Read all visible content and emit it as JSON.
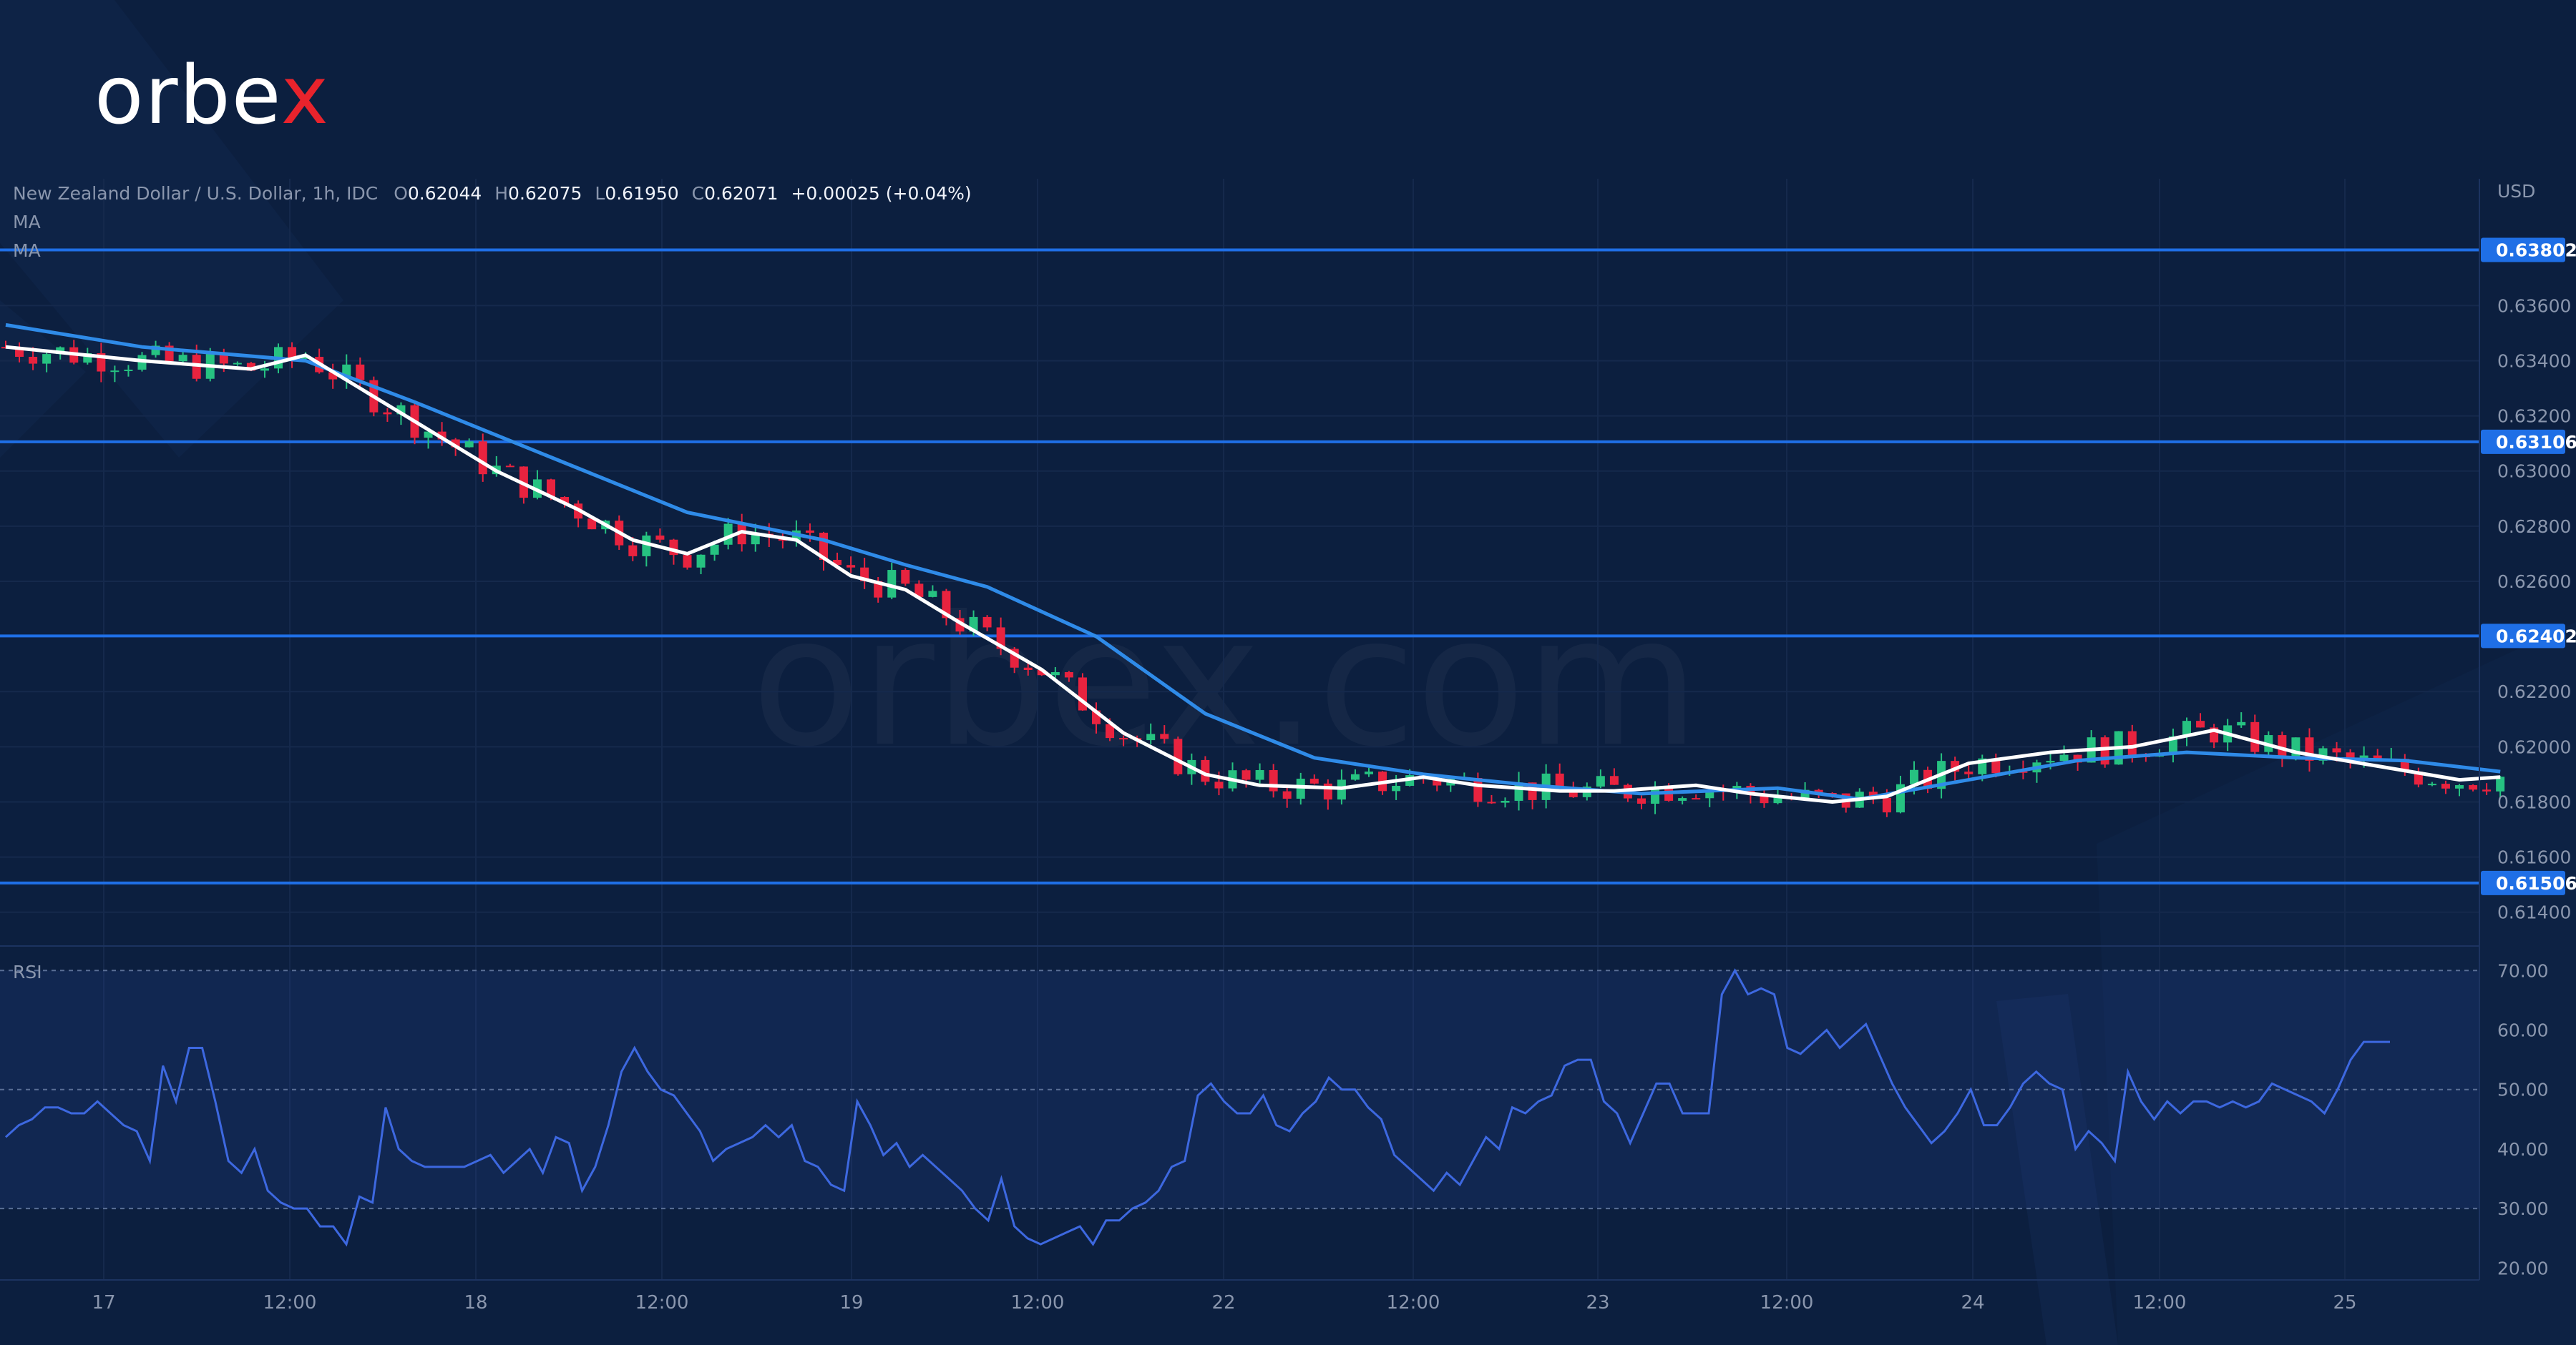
{
  "brand": {
    "logo_main": "orbe",
    "logo_accent": "x",
    "watermark": "orbex.com"
  },
  "legend": {
    "symbol": "New Zealand Dollar / U.S. Dollar, 1h, IDC",
    "o_label": "O",
    "o": "0.62044",
    "h_label": "H",
    "h": "0.62075",
    "l_label": "L",
    "l": "0.61950",
    "c_label": "C",
    "c": "0.62071",
    "change": "+0.00025 (+0.04%)",
    "ma1": "MA",
    "ma2": "MA"
  },
  "rsi_label": "RSI",
  "currency": "USD",
  "colors": {
    "background": "#0c1f3f",
    "bull": "#26c281",
    "bear": "#e8233f",
    "ma_fast": "#ffffff",
    "ma_slow": "#2f8be8",
    "rsi": "#3d68e0",
    "level_line": "#1f6fe6",
    "grid": "#15294c"
  },
  "chart_data": [
    {
      "type": "candlestick",
      "title": "New Zealand Dollar / U.S. Dollar, 1h, IDC",
      "x_tick_labels": [
        "17",
        "12:00",
        "18",
        "12:00",
        "19",
        "12:00",
        "22",
        "12:00",
        "23",
        "12:00",
        "24",
        "12:00",
        "25"
      ],
      "y_tick_labels": [
        "0.63600",
        "0.63400",
        "0.63200",
        "0.63000",
        "0.62800",
        "0.62600",
        "0.62200",
        "0.62000",
        "0.61800",
        "0.61600",
        "0.61400"
      ],
      "ylim": [
        0.6128,
        0.6406
      ],
      "horizontal_levels": [
        {
          "label": "0.63802",
          "value": 0.63802
        },
        {
          "label": "0.63106",
          "value": 0.63106
        },
        {
          "label": "0.62402",
          "value": 0.62402
        },
        {
          "label": "0.61506",
          "value": 0.61506
        }
      ],
      "moving_average_fast": [
        [
          0,
          0.6345
        ],
        [
          10,
          0.634
        ],
        [
          18,
          0.6337
        ],
        [
          22,
          0.6342
        ],
        [
          30,
          0.6318
        ],
        [
          36,
          0.63
        ],
        [
          42,
          0.6286
        ],
        [
          46,
          0.6275
        ],
        [
          50,
          0.627
        ],
        [
          54,
          0.6278
        ],
        [
          58,
          0.6275
        ],
        [
          62,
          0.6262
        ],
        [
          66,
          0.6257
        ],
        [
          70,
          0.6245
        ],
        [
          76,
          0.6228
        ],
        [
          82,
          0.6205
        ],
        [
          88,
          0.619
        ],
        [
          92,
          0.6186
        ],
        [
          98,
          0.6185
        ],
        [
          104,
          0.6189
        ],
        [
          108,
          0.6186
        ],
        [
          114,
          0.6184
        ],
        [
          118,
          0.6184
        ],
        [
          124,
          0.6186
        ],
        [
          128,
          0.6183
        ],
        [
          134,
          0.618
        ],
        [
          138,
          0.6182
        ],
        [
          144,
          0.6194
        ],
        [
          150,
          0.6198
        ],
        [
          156,
          0.62
        ],
        [
          162,
          0.6206
        ],
        [
          168,
          0.6198
        ],
        [
          174,
          0.6193
        ],
        [
          180,
          0.6188
        ],
        [
          183,
          0.6189
        ]
      ],
      "moving_average_slow": [
        [
          0,
          0.6353
        ],
        [
          10,
          0.6345
        ],
        [
          22,
          0.634
        ],
        [
          30,
          0.6325
        ],
        [
          40,
          0.6305
        ],
        [
          50,
          0.6285
        ],
        [
          60,
          0.6275
        ],
        [
          66,
          0.6266
        ],
        [
          72,
          0.6258
        ],
        [
          80,
          0.624
        ],
        [
          88,
          0.6212
        ],
        [
          96,
          0.6196
        ],
        [
          104,
          0.619
        ],
        [
          112,
          0.6186
        ],
        [
          120,
          0.6183
        ],
        [
          130,
          0.6185
        ],
        [
          136,
          0.6181
        ],
        [
          144,
          0.6188
        ],
        [
          152,
          0.6195
        ],
        [
          160,
          0.6198
        ],
        [
          168,
          0.6196
        ],
        [
          176,
          0.6195
        ],
        [
          183,
          0.6191
        ]
      ]
    },
    {
      "type": "line",
      "title": "RSI",
      "y_tick_labels": [
        "70.00",
        "60.00",
        "50.00",
        "40.00",
        "30.00",
        "20.00"
      ],
      "ylim": [
        18,
        74
      ],
      "reference_lines": [
        70,
        50,
        30
      ],
      "series": [
        {
          "values": [
            42,
            44,
            45,
            47,
            47,
            46,
            46,
            48,
            46,
            44,
            43,
            38,
            54,
            48,
            57,
            57,
            48,
            38,
            36,
            40,
            33,
            31,
            30,
            30,
            27,
            27,
            24,
            32,
            31,
            47,
            40,
            38,
            37,
            37,
            37,
            37,
            38,
            39,
            36,
            38,
            40,
            36,
            42,
            41,
            33,
            37,
            44,
            53,
            57,
            53,
            50,
            49,
            46,
            43,
            38,
            40,
            41,
            42,
            44,
            42,
            44,
            38,
            37,
            34,
            33,
            48,
            44,
            39,
            41,
            37,
            39,
            37,
            35,
            33,
            30,
            28,
            35,
            27,
            25,
            24,
            25,
            26,
            27,
            24,
            28,
            28,
            30,
            31,
            33,
            37,
            38,
            49,
            51,
            48,
            46,
            46,
            49,
            44,
            43,
            46,
            48,
            52,
            50,
            50,
            47,
            45,
            39,
            37,
            35,
            33,
            36,
            34,
            38,
            42,
            40,
            47,
            46,
            48,
            49,
            54,
            55,
            55,
            48,
            46,
            41,
            46,
            51,
            51,
            46,
            46,
            46,
            66,
            70,
            66,
            67,
            66,
            57,
            56,
            58,
            60,
            57,
            59,
            61,
            56,
            51,
            47,
            44,
            41,
            43,
            46,
            50,
            44,
            44,
            47,
            51,
            53,
            51,
            50,
            40,
            43,
            41,
            38,
            53,
            48,
            45,
            48,
            46,
            48,
            48,
            47,
            48,
            47,
            48,
            51,
            50,
            49,
            48,
            46,
            50,
            55,
            58,
            58,
            58
          ]
        }
      ]
    }
  ]
}
